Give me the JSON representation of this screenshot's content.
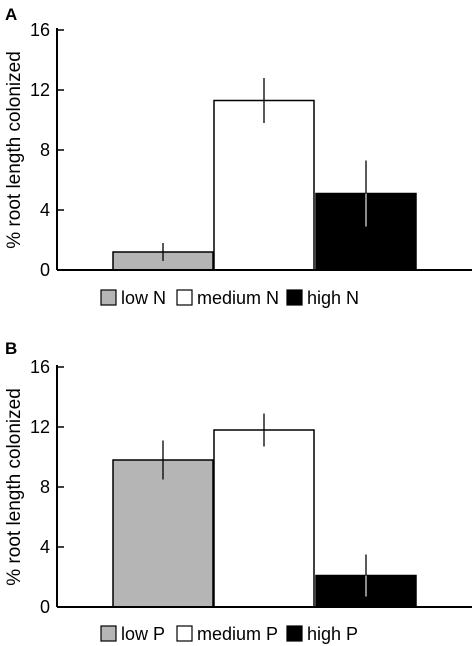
{
  "chart_data": [
    {
      "type": "bar",
      "panel_label": "A",
      "ylabel": "% root length colonized",
      "ylim": [
        0,
        16
      ],
      "yticks": [
        "0",
        "4",
        "8",
        "12",
        "16"
      ],
      "series": [
        {
          "name": "low N",
          "value": 1.2,
          "error": 0.6,
          "fill": "#b5b5b5"
        },
        {
          "name": "medium N",
          "value": 11.3,
          "error": 1.5,
          "fill": "#ffffff"
        },
        {
          "name": "high N",
          "value": 5.1,
          "error": 2.2,
          "fill": "#000000"
        }
      ],
      "legend_placement": "bottom"
    },
    {
      "type": "bar",
      "panel_label": "B",
      "ylabel": "% root length colonized",
      "ylim": [
        0,
        16
      ],
      "yticks": [
        "0",
        "4",
        "8",
        "12",
        "16"
      ],
      "series": [
        {
          "name": "low P",
          "value": 9.8,
          "error": 1.3,
          "fill": "#b5b5b5"
        },
        {
          "name": "medium P",
          "value": 11.8,
          "error": 1.1,
          "fill": "#ffffff"
        },
        {
          "name": "high P",
          "value": 2.1,
          "error": 1.4,
          "fill": "#000000"
        }
      ],
      "legend_placement": "bottom"
    }
  ]
}
